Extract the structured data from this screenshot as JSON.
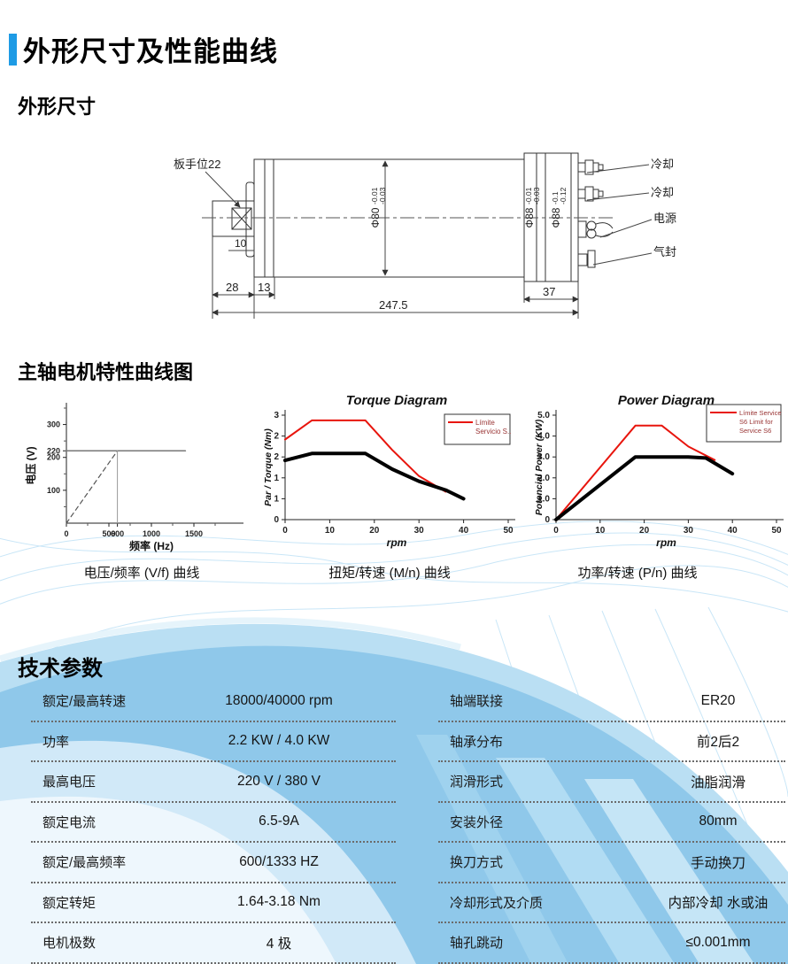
{
  "page": {
    "title": "外形尺寸及性能曲线",
    "section_dimensions": "外形尺寸",
    "section_curves": "主轴电机特性曲线图",
    "section_params": "技术参数"
  },
  "colors": {
    "accent_blue": "#1E9BE5",
    "band_blue": "#8FC8EA",
    "band_blue_light": "#BADFF3",
    "curve_red": "#E8150D",
    "curve_black": "#000000"
  },
  "drawing": {
    "labels": {
      "wrench": "板手位22",
      "cooling1": "冷却",
      "cooling2": "冷却",
      "power": "电源",
      "air_seal": "气封"
    },
    "dims": {
      "d10": "10",
      "d28": "28",
      "d13": "13",
      "total": "247.5",
      "d37": "37",
      "dia80": "Φ80",
      "dia80_tol_up": "-0.01",
      "dia80_tol_dn": "-0.03",
      "dia88a": "Φ88",
      "dia88a_tol_up": "-0.01",
      "dia88a_tol_dn": "-0.03",
      "dia88b": "Φ88",
      "dia88b_tol_up": "-0.1",
      "dia88b_tol_dn": "-0.12"
    }
  },
  "captions": [
    "电压/频率 (V/f) 曲线",
    "扭矩/转速 (M/n) 曲线",
    "功率/转速 (P/n) 曲线"
  ],
  "chart_data": [
    {
      "type": "line",
      "title": "",
      "xlabel": "频率 (Hz)",
      "ylabel": "电压 (V)",
      "xlim": [
        0,
        2000
      ],
      "ylim": [
        0,
        350
      ],
      "xticks": [
        {
          "v": 0,
          "label": "0"
        },
        {
          "v": 500,
          "label": "500"
        },
        {
          "v": 600,
          "label": "600"
        },
        {
          "v": 1000,
          "label": "1000"
        },
        {
          "v": 1500,
          "label": "1500"
        }
      ],
      "xticks_minor": [
        250,
        750,
        1250,
        1750
      ],
      "yticks": [
        {
          "v": 100,
          "label": "100"
        },
        {
          "v": 200,
          "label": "200"
        },
        {
          "v": 220,
          "label": "220"
        },
        {
          "v": 300,
          "label": "300"
        }
      ],
      "yticks_minor": [
        50,
        150,
        250,
        350
      ],
      "grid": false,
      "series": [
        {
          "name": "vf-ramp",
          "color": "#555555",
          "width": 1.2,
          "dash": "5 4",
          "points": [
            [
              0,
              0
            ],
            [
              600,
              220
            ]
          ]
        },
        {
          "name": "voltage-plateau-220",
          "color": "#777777",
          "width": 1.5,
          "points": [
            [
              0,
              220
            ],
            [
              1400,
              220
            ]
          ]
        },
        {
          "name": "base-frequency-600",
          "color": "#999999",
          "width": 1,
          "points": [
            [
              600,
              0
            ],
            [
              600,
              220
            ]
          ]
        }
      ]
    },
    {
      "type": "line",
      "title": "Torque Diagram",
      "xlabel": "rpm",
      "ylabel": "Par / Torque (Nm)",
      "xlim": [
        0,
        50
      ],
      "ylim": [
        0,
        3
      ],
      "xticks": [
        {
          "v": 0,
          "label": "0"
        },
        {
          "v": 10,
          "label": "10"
        },
        {
          "v": 20,
          "label": "20"
        },
        {
          "v": 30,
          "label": "30"
        },
        {
          "v": 40,
          "label": "40"
        },
        {
          "v": 50,
          "label": "50"
        }
      ],
      "yticks": [
        {
          "v": 0,
          "label": "0"
        },
        {
          "v": 0.6,
          "label": "1"
        },
        {
          "v": 1.2,
          "label": "1"
        },
        {
          "v": 1.8,
          "label": "2"
        },
        {
          "v": 2.4,
          "label": "2"
        },
        {
          "v": 3,
          "label": "3"
        }
      ],
      "grid": false,
      "legend": {
        "position": "top-right",
        "lines": [
          "Límite",
          "Servicio S.."
        ]
      },
      "series": [
        {
          "name": "limite-servicio-s6",
          "color": "#E8150D",
          "width": 2,
          "points": [
            [
              0,
              2.3
            ],
            [
              6,
              2.85
            ],
            [
              18,
              2.85
            ],
            [
              24,
              2.0
            ],
            [
              30,
              1.25
            ],
            [
              36,
              0.8
            ]
          ]
        },
        {
          "name": "servicio-continuo",
          "color": "#000000",
          "width": 4,
          "points": [
            [
              0,
              1.7
            ],
            [
              6,
              1.9
            ],
            [
              18,
              1.9
            ],
            [
              24,
              1.45
            ],
            [
              30,
              1.1
            ],
            [
              36,
              0.85
            ],
            [
              40,
              0.6
            ]
          ]
        }
      ]
    },
    {
      "type": "line",
      "title": "Power Diagram",
      "xlabel": "rpm",
      "ylabel": "Potencial Power (KW)",
      "xlim": [
        0,
        50
      ],
      "ylim": [
        0,
        5
      ],
      "xticks": [
        {
          "v": 0,
          "label": "0"
        },
        {
          "v": 10,
          "label": "10"
        },
        {
          "v": 20,
          "label": "20"
        },
        {
          "v": 30,
          "label": "30"
        },
        {
          "v": 40,
          "label": "40"
        },
        {
          "v": 50,
          "label": "50"
        }
      ],
      "yticks": [
        {
          "v": 0,
          "label": "0"
        },
        {
          "v": 1,
          "label": "1.0"
        },
        {
          "v": 2,
          "label": "2.0"
        },
        {
          "v": 3,
          "label": "3.0"
        },
        {
          "v": 4,
          "label": "4.0"
        },
        {
          "v": 5,
          "label": "5.0"
        }
      ],
      "grid": false,
      "legend": {
        "position": "top-right",
        "lines": [
          "Límite Service",
          "S6 Limit for",
          "Service S6"
        ]
      },
      "series": [
        {
          "name": "limite-service-s6",
          "color": "#E8150D",
          "width": 2,
          "points": [
            [
              0,
              0
            ],
            [
              18,
              4.5
            ],
            [
              24,
              4.5
            ],
            [
              30,
              3.5
            ],
            [
              36,
              2.85
            ]
          ]
        },
        {
          "name": "continuous-power",
          "color": "#000000",
          "width": 4,
          "points": [
            [
              0,
              0
            ],
            [
              18,
              3.0
            ],
            [
              30,
              3.0
            ],
            [
              34,
              2.95
            ],
            [
              40,
              2.2
            ]
          ]
        }
      ]
    }
  ],
  "params": {
    "left": [
      {
        "label": "额定/最高转速",
        "value": "18000/40000 rpm"
      },
      {
        "label": "功率",
        "value": "2.2 KW / 4.0 KW"
      },
      {
        "label": "最高电压",
        "value": "220 V / 380 V"
      },
      {
        "label": "额定电流",
        "value": "6.5-9A"
      },
      {
        "label": "额定/最高频率",
        "value": "600/1333 HZ"
      },
      {
        "label": "额定转矩",
        "value": "1.64-3.18 Nm"
      },
      {
        "label": "电机极数",
        "value": "4 极"
      }
    ],
    "right": [
      {
        "label": "轴端联接",
        "value": "ER20"
      },
      {
        "label": "轴承分布",
        "value": "前2后2"
      },
      {
        "label": "润滑形式",
        "value": "油脂润滑"
      },
      {
        "label": "安装外径",
        "value": "80mm"
      },
      {
        "label": "换刀方式",
        "value": "手动换刀"
      },
      {
        "label": "冷却形式及介质",
        "value": "内部冷却  水或油"
      },
      {
        "label": "轴孔跳动",
        "value": "≤0.001mm"
      }
    ]
  }
}
